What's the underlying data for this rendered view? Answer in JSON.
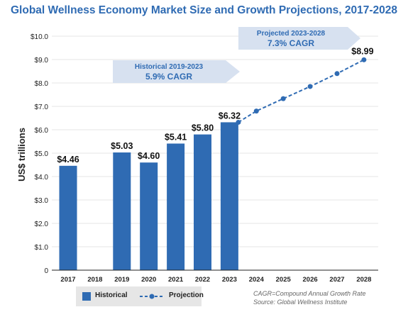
{
  "title": "Global Wellness Economy Market Size and Growth Projections, 2017-2028",
  "chart_data": {
    "type": "bar",
    "ylabel": "US$ trillions",
    "ylim": [
      0,
      10
    ],
    "yticks": [
      "0",
      "$1.0",
      "$2.0",
      "$3.0",
      "$4.0",
      "$5.0",
      "$6.0",
      "$7.0",
      "$8.0",
      "$9.0",
      "$10.0"
    ],
    "categories": [
      "2017",
      "2018",
      "2019",
      "2020",
      "2021",
      "2022",
      "2023",
      "2024",
      "2025",
      "2026",
      "2027",
      "2028"
    ],
    "series": [
      {
        "name": "Historical",
        "type": "bar",
        "color": "#2f6bb3",
        "values": [
          4.46,
          null,
          5.03,
          4.6,
          5.41,
          5.8,
          6.32,
          null,
          null,
          null,
          null,
          null
        ],
        "labels": [
          "$4.46",
          "",
          "$5.03",
          "$4.60",
          "$5.41",
          "$5.80",
          "$6.32",
          "",
          "",
          "",
          "",
          ""
        ]
      },
      {
        "name": "Projection",
        "type": "line",
        "style": "dashed",
        "color": "#2f6bb3",
        "values": [
          null,
          null,
          null,
          null,
          null,
          null,
          6.32,
          6.8,
          7.33,
          7.85,
          8.4,
          8.99
        ],
        "end_label": "$8.99"
      }
    ],
    "annotations": [
      {
        "line1": "Historical 2019-2023",
        "line2": "5.9% CAGR"
      },
      {
        "line1": "Projected 2023-2028",
        "line2": "7.3% CAGR"
      }
    ],
    "legend": {
      "position": "bottom-left"
    }
  },
  "legend_labels": {
    "historical": "Historical",
    "projection": "Projection"
  },
  "footnote": {
    "cagr": "CAGR=Compound Annual Growth Rate",
    "source": "Source: Global Wellness Institute"
  },
  "colors": {
    "accent": "#2f6bb3",
    "annotation_fill": "#d7e1f0",
    "annotation_text": "#2f6bb3"
  }
}
